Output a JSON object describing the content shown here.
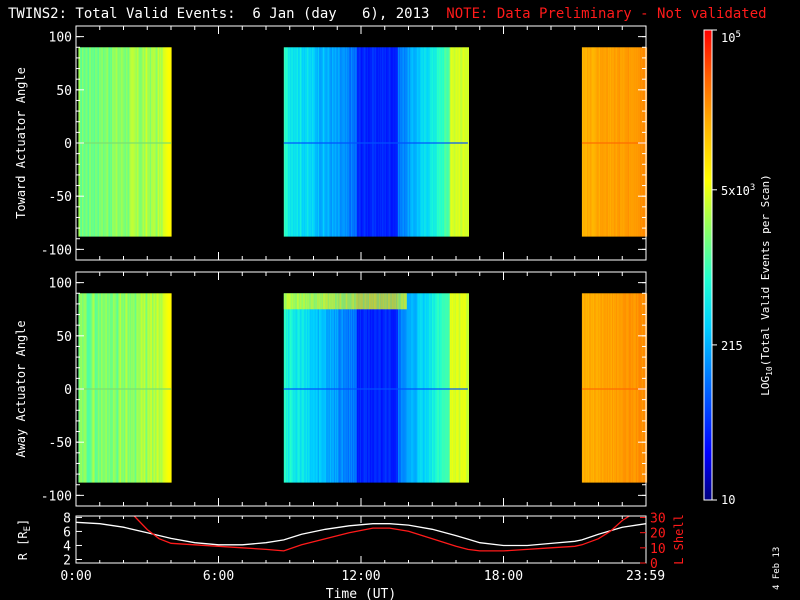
{
  "title": {
    "main": "TWINS2: Total Valid Events:  6 Jan (day   6), 2013",
    "note": "NOTE: Data Preliminary - Not validated"
  },
  "datestamp": "4 Feb 13",
  "chart_data": [
    {
      "type": "heatmap",
      "ylabel": "Toward Actuator Angle",
      "ylim": [
        -110,
        110
      ],
      "yticks": [
        100,
        50,
        0,
        -50,
        -100
      ],
      "xlim": [
        0,
        24
      ],
      "angle_range": [
        -88,
        90
      ],
      "segments": [
        {
          "x": [
            0.1,
            4.0
          ],
          "level": "green",
          "edge_high": [
            3.6,
            4.0
          ]
        },
        {
          "x": [
            8.75,
            16.5
          ],
          "level": "blue",
          "core": [
            11.8,
            13.5
          ]
        },
        {
          "x": [
            21.3,
            24.0
          ],
          "level": "orange"
        }
      ]
    },
    {
      "type": "heatmap",
      "ylabel": "Away Actuator Angle",
      "ylim": [
        -110,
        110
      ],
      "yticks": [
        100,
        50,
        0,
        -50,
        -100
      ],
      "xlim": [
        0,
        24
      ],
      "angle_range": [
        -88,
        90
      ],
      "segments": [
        {
          "x": [
            0.1,
            4.0
          ],
          "level": "green",
          "edge_high": [
            3.6,
            4.0
          ]
        },
        {
          "x": [
            8.75,
            16.5
          ],
          "level": "blue",
          "core": [
            11.8,
            13.5
          ],
          "high_band": [
            75,
            90
          ]
        },
        {
          "x": [
            21.3,
            24.0
          ],
          "level": "orange"
        }
      ]
    },
    {
      "type": "line",
      "ylabel_left": "R [R",
      "ylabel_left_sub": "E",
      "ylabel_right": "L Shell",
      "xlabel": "Time (UT)",
      "xticks": [
        {
          "v": 0,
          "label": "0:00"
        },
        {
          "v": 6,
          "label": "6:00"
        },
        {
          "v": 12,
          "label": "12:00"
        },
        {
          "v": 18,
          "label": "18:00"
        },
        {
          "v": 23.98,
          "label": "23:59"
        }
      ],
      "ylim_left": [
        1.5,
        8.2
      ],
      "yticks_left": [
        8,
        6,
        4,
        2
      ],
      "ylim_right": [
        0,
        31
      ],
      "yticks_right": [
        30,
        20,
        10,
        0
      ],
      "series": [
        {
          "axis": "left",
          "color": "#ffffff",
          "x": [
            0,
            1,
            2,
            3,
            4,
            5,
            6,
            7,
            8,
            8.75,
            9.5,
            10.5,
            11.5,
            12.5,
            13.2,
            14,
            15,
            16,
            16.5,
            17,
            18,
            19,
            20,
            21,
            21.3,
            22,
            23,
            24
          ],
          "y": [
            7.3,
            7.1,
            6.6,
            5.8,
            5.0,
            4.4,
            4.1,
            4.1,
            4.4,
            4.8,
            5.6,
            6.3,
            6.8,
            7.1,
            7.1,
            6.9,
            6.3,
            5.4,
            4.9,
            4.4,
            4.0,
            4.0,
            4.3,
            4.6,
            4.8,
            5.6,
            6.6,
            7.1
          ]
        },
        {
          "axis": "right",
          "color": "#ff1a1a",
          "x": [
            2.45,
            3,
            3.5,
            4.0,
            5,
            6,
            7,
            8,
            8.75,
            9.5,
            10.5,
            11.5,
            12.5,
            13.2,
            14,
            15,
            16,
            16.5,
            17,
            18,
            19,
            20,
            21,
            21.3,
            22,
            22.5,
            23,
            23.3
          ],
          "y": [
            31,
            22,
            16,
            13,
            12,
            11,
            10,
            9,
            8,
            12,
            16,
            20,
            23,
            23,
            21,
            16,
            11,
            9,
            8,
            8,
            9,
            10,
            11,
            12,
            16,
            21,
            28,
            31
          ]
        }
      ]
    }
  ],
  "colorbar": {
    "label_main": "LOG",
    "label_sub": "10",
    "label_rest": "(Total Valid Events per Scan)",
    "ticks": [
      {
        "base": "10",
        "exp": "5",
        "pos": 1.0
      },
      {
        "base": "5x10",
        "exp": "3",
        "pos": 0.66
      },
      {
        "base": "215",
        "exp": "",
        "pos": 0.33
      },
      {
        "base": "10",
        "exp": "",
        "pos": 0.0
      }
    ]
  }
}
